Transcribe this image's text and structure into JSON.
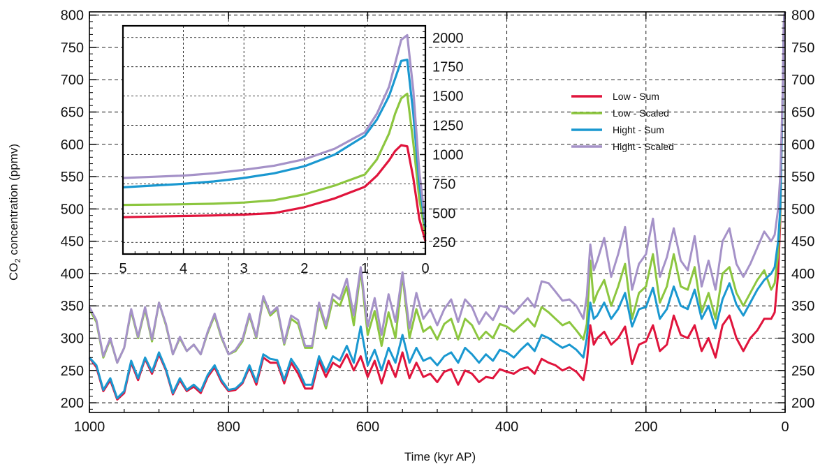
{
  "chart_data": [
    {
      "type": "line",
      "xlabel": "Time (kyr AP)",
      "ylabel": "CO2 concentration (ppmv)",
      "ylabel_main": "CO",
      "ylabel_sub": "2",
      "ylabel_rest": " concentration (ppmv)",
      "xlim": [
        1000,
        0
      ],
      "ylim": [
        185,
        805
      ],
      "x_ticks": [
        1000,
        800,
        600,
        400,
        200,
        0
      ],
      "y_ticks": [
        200,
        250,
        300,
        350,
        400,
        450,
        500,
        550,
        600,
        650,
        700,
        750,
        800
      ],
      "grid": true,
      "legend_position": "upper-right",
      "x": [
        1000,
        990,
        980,
        970,
        960,
        950,
        940,
        930,
        920,
        910,
        900,
        890,
        880,
        870,
        860,
        850,
        840,
        830,
        820,
        810,
        800,
        790,
        780,
        770,
        760,
        750,
        740,
        730,
        720,
        710,
        700,
        690,
        680,
        670,
        660,
        650,
        640,
        630,
        620,
        610,
        600,
        590,
        580,
        570,
        560,
        550,
        540,
        530,
        520,
        510,
        500,
        490,
        480,
        470,
        460,
        450,
        440,
        430,
        420,
        410,
        400,
        390,
        380,
        370,
        360,
        350,
        340,
        330,
        320,
        310,
        300,
        290,
        285,
        280,
        275,
        270,
        260,
        250,
        240,
        230,
        220,
        210,
        200,
        190,
        180,
        170,
        160,
        150,
        140,
        130,
        120,
        110,
        100,
        90,
        80,
        70,
        60,
        50,
        40,
        30,
        20,
        15,
        10,
        7,
        5,
        3,
        2,
        1,
        0
      ],
      "series": [
        {
          "name": "Low - Sum",
          "color": "#e0143c",
          "values": [
            270,
            255,
            218,
            235,
            205,
            215,
            262,
            235,
            268,
            245,
            275,
            250,
            213,
            235,
            218,
            225,
            215,
            240,
            255,
            232,
            218,
            220,
            230,
            255,
            228,
            270,
            262,
            262,
            230,
            262,
            245,
            222,
            222,
            265,
            240,
            262,
            255,
            275,
            250,
            272,
            240,
            265,
            230,
            265,
            240,
            278,
            238,
            262,
            240,
            245,
            232,
            248,
            252,
            228,
            250,
            245,
            232,
            240,
            238,
            252,
            248,
            245,
            252,
            255,
            245,
            268,
            262,
            258,
            250,
            255,
            248,
            235,
            262,
            320,
            290,
            300,
            310,
            290,
            300,
            318,
            260,
            290,
            295,
            320,
            280,
            290,
            335,
            305,
            300,
            320,
            280,
            300,
            270,
            320,
            335,
            300,
            280,
            300,
            312,
            330,
            330,
            340,
            400,
            480,
            600,
            700,
            780,
            800,
            810
          ]
        },
        {
          "name": "Low - Scaled",
          "color": "#8cc63f",
          "values": [
            345,
            325,
            270,
            298,
            262,
            285,
            342,
            300,
            345,
            295,
            355,
            320,
            275,
            300,
            280,
            290,
            275,
            308,
            335,
            300,
            275,
            280,
            295,
            335,
            300,
            362,
            335,
            345,
            290,
            330,
            322,
            285,
            285,
            350,
            315,
            360,
            350,
            380,
            320,
            405,
            305,
            342,
            288,
            340,
            300,
            398,
            300,
            345,
            310,
            318,
            298,
            322,
            330,
            298,
            330,
            320,
            298,
            310,
            300,
            322,
            318,
            310,
            320,
            330,
            318,
            348,
            340,
            330,
            320,
            325,
            312,
            298,
            322,
            420,
            355,
            370,
            390,
            350,
            380,
            415,
            330,
            370,
            380,
            430,
            355,
            380,
            430,
            380,
            375,
            410,
            340,
            370,
            330,
            400,
            410,
            370,
            350,
            370,
            390,
            405,
            375,
            385,
            430,
            490,
            600,
            700,
            780,
            800,
            810
          ]
        },
        {
          "name": "Hight - Sum",
          "color": "#1a98d0",
          "values": [
            270,
            258,
            220,
            238,
            207,
            218,
            265,
            238,
            270,
            248,
            278,
            252,
            215,
            238,
            220,
            228,
            218,
            243,
            258,
            235,
            220,
            222,
            232,
            258,
            232,
            275,
            268,
            266,
            235,
            268,
            252,
            228,
            228,
            272,
            248,
            272,
            265,
            288,
            262,
            318,
            258,
            282,
            250,
            285,
            262,
            305,
            262,
            285,
            265,
            270,
            258,
            272,
            278,
            262,
            285,
            275,
            262,
            275,
            265,
            282,
            278,
            270,
            282,
            292,
            280,
            305,
            300,
            292,
            285,
            290,
            282,
            270,
            300,
            355,
            330,
            335,
            355,
            330,
            345,
            370,
            318,
            345,
            348,
            378,
            330,
            345,
            380,
            350,
            345,
            375,
            330,
            350,
            315,
            360,
            385,
            352,
            335,
            355,
            375,
            390,
            400,
            410,
            450,
            500,
            600,
            700,
            780,
            800,
            810
          ]
        },
        {
          "name": "Hight - Scaled",
          "color": "#a592c8",
          "values": [
            348,
            328,
            272,
            300,
            262,
            285,
            345,
            302,
            348,
            298,
            355,
            322,
            275,
            302,
            280,
            290,
            275,
            310,
            338,
            302,
            275,
            282,
            298,
            338,
            302,
            365,
            338,
            348,
            292,
            335,
            328,
            288,
            288,
            355,
            320,
            368,
            360,
            392,
            335,
            410,
            318,
            362,
            305,
            368,
            325,
            402,
            315,
            370,
            330,
            345,
            320,
            345,
            360,
            325,
            360,
            348,
            322,
            340,
            328,
            350,
            348,
            338,
            350,
            362,
            348,
            388,
            385,
            372,
            358,
            360,
            350,
            330,
            365,
            445,
            405,
            420,
            455,
            395,
            430,
            472,
            375,
            415,
            430,
            485,
            395,
            425,
            470,
            420,
            405,
            458,
            380,
            420,
            375,
            450,
            470,
            415,
            395,
            415,
            440,
            465,
            450,
            460,
            500,
            550,
            620,
            700,
            780,
            800,
            810
          ]
        }
      ]
    },
    {
      "type": "line",
      "xlim": [
        5,
        0
      ],
      "ylim": [
        150,
        2100
      ],
      "x_ticks": [
        5,
        4,
        3,
        2,
        1,
        0
      ],
      "y_ticks": [
        250,
        500,
        750,
        1000,
        1250,
        1500,
        1750,
        2000
      ],
      "grid": true,
      "x": [
        5,
        4.5,
        4,
        3.5,
        3,
        2.5,
        2,
        1.5,
        1,
        0.8,
        0.6,
        0.5,
        0.4,
        0.3,
        0.2,
        0.1,
        0
      ],
      "series": [
        {
          "name": "Low - Sum",
          "color": "#e0143c",
          "values": [
            465,
            470,
            475,
            480,
            487,
            500,
            550,
            625,
            725,
            820,
            950,
            1030,
            1080,
            1070,
            800,
            450,
            260
          ]
        },
        {
          "name": "Low - Scaled",
          "color": "#8cc63f",
          "values": [
            570,
            572,
            575,
            580,
            590,
            610,
            660,
            735,
            830,
            960,
            1180,
            1350,
            1480,
            1520,
            1100,
            620,
            320
          ]
        },
        {
          "name": "Hight - Sum",
          "color": "#1a98d0",
          "values": [
            720,
            735,
            750,
            770,
            800,
            840,
            900,
            1000,
            1160,
            1300,
            1500,
            1650,
            1800,
            1810,
            1350,
            750,
            380
          ]
        },
        {
          "name": "Hight - Scaled",
          "color": "#a592c8",
          "values": [
            800,
            810,
            820,
            840,
            870,
            905,
            960,
            1050,
            1190,
            1350,
            1580,
            1780,
            1980,
            2020,
            1550,
            850,
            420
          ]
        }
      ]
    }
  ]
}
